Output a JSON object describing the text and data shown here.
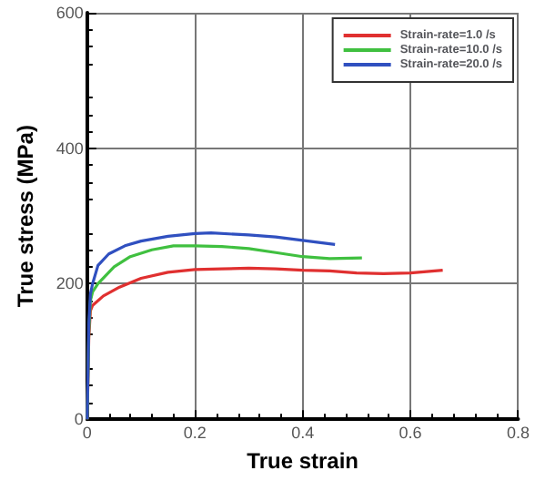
{
  "chart_data": {
    "type": "line",
    "xlabel": "True strain",
    "ylabel": "True stress (MPa)",
    "xlim": [
      0,
      0.8
    ],
    "xticks": [
      0,
      0.2,
      0.4,
      0.6,
      0.8
    ],
    "ylim": [
      0,
      600
    ],
    "yticks": [
      0,
      200,
      400,
      600
    ],
    "grid": true,
    "legend": "top right",
    "marker": "none",
    "line_style": "solid",
    "series": [
      {
        "name": "Strain-rate=1.0 /s",
        "color": "#e03030",
        "x": [
          0,
          0.003,
          0.006,
          0.01,
          0.03,
          0.06,
          0.1,
          0.15,
          0.2,
          0.25,
          0.3,
          0.35,
          0.4,
          0.45,
          0.5,
          0.55,
          0.6,
          0.66
        ],
        "values": [
          0,
          120,
          160,
          168,
          182,
          195,
          208,
          217,
          221,
          222,
          223,
          222,
          220,
          219,
          216,
          215,
          216,
          220
        ]
      },
      {
        "name": "Strain-rate=10.0 /s",
        "color": "#40c040",
        "x": [
          0,
          0.003,
          0.006,
          0.01,
          0.02,
          0.05,
          0.08,
          0.12,
          0.16,
          0.2,
          0.25,
          0.3,
          0.35,
          0.4,
          0.45,
          0.51
        ],
        "values": [
          0,
          130,
          175,
          188,
          200,
          225,
          240,
          250,
          256,
          256,
          255,
          252,
          246,
          240,
          237,
          238
        ]
      },
      {
        "name": "Strain-rate=20.0 /s",
        "color": "#3050c0",
        "x": [
          0,
          0.003,
          0.006,
          0.01,
          0.02,
          0.04,
          0.07,
          0.1,
          0.15,
          0.2,
          0.23,
          0.3,
          0.35,
          0.4,
          0.46
        ],
        "values": [
          0,
          140,
          185,
          200,
          227,
          244,
          256,
          263,
          270,
          274,
          275,
          272,
          269,
          264,
          258
        ]
      }
    ]
  }
}
